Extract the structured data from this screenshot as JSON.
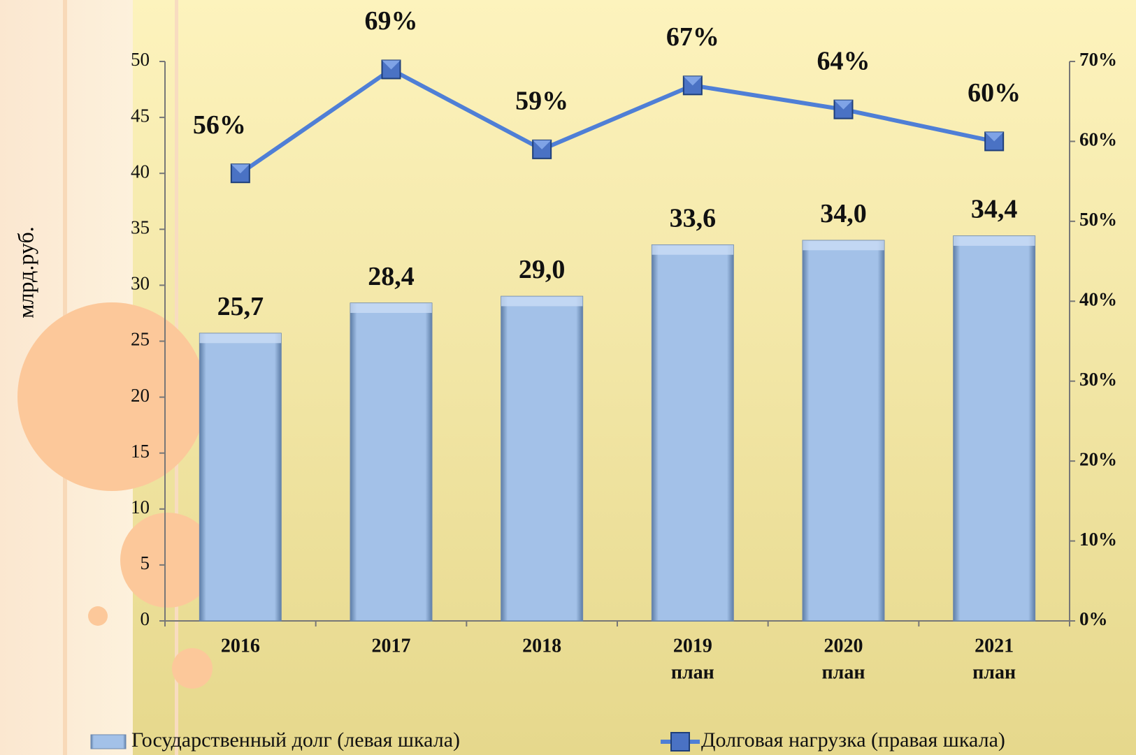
{
  "chart_data": {
    "type": "bar_line",
    "y_label": "млрд.руб.",
    "categories": [
      [
        "2016"
      ],
      [
        "2017"
      ],
      [
        "2018"
      ],
      [
        "2019",
        "план"
      ],
      [
        "2020",
        "план"
      ],
      [
        "2021",
        "план"
      ]
    ],
    "series": [
      {
        "name": "Государственный долг (левая шкала)",
        "type": "bar",
        "color": "#9dbde6",
        "values": [
          25.7,
          28.4,
          29.0,
          33.6,
          34.0,
          34.4
        ],
        "value_labels": [
          "25,7",
          "28,4",
          "29,0",
          "33,6",
          "34,0",
          "34,4"
        ]
      },
      {
        "name": "Долговая нагрузка (правая шкала)",
        "type": "line",
        "axis": "y2",
        "color": "#4f7fd6",
        "values": [
          56,
          69,
          59,
          67,
          64,
          60
        ],
        "value_labels": [
          "56%",
          "69%",
          "59%",
          "67%",
          "64%",
          "60%"
        ]
      }
    ],
    "ylim": [
      0,
      50
    ],
    "yticks": [
      0,
      5,
      10,
      15,
      20,
      25,
      30,
      35,
      40,
      45,
      50
    ],
    "y2lim": [
      0,
      70
    ],
    "y2ticks": [
      {
        "value": 0,
        "label": "0%"
      },
      {
        "value": 10,
        "label": "10%"
      },
      {
        "value": 20,
        "label": "20%"
      },
      {
        "value": 30,
        "label": "30%"
      },
      {
        "value": 40,
        "label": "40%"
      },
      {
        "value": 50,
        "label": "50%"
      },
      {
        "value": 60,
        "label": "60%"
      },
      {
        "value": 70,
        "label": "70%"
      }
    ]
  }
}
